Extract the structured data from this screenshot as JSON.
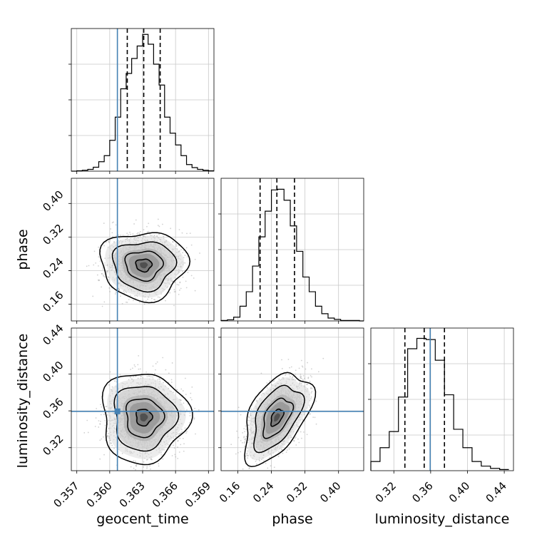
{
  "chart_data": {
    "type": "corner",
    "parameters": [
      "geocent_time",
      "phase",
      "luminosity_distance"
    ],
    "truth": {
      "geocent_time": 0.3607,
      "phase": null,
      "luminosity_distance": 0.3595
    },
    "colors": {
      "truth": "#4682b4",
      "hist": "#000000",
      "grid": "#c8c8c8",
      "scatter": "#9a9a9a"
    },
    "grid": true,
    "marginals": [
      {
        "parameter": "geocent_time",
        "range": [
          0.3565,
          0.3695
        ],
        "bins": [
          0.3565,
          0.357,
          0.3575,
          0.358,
          0.3585,
          0.359,
          0.3595,
          0.36,
          0.3605,
          0.361,
          0.3615,
          0.362,
          0.3625,
          0.363,
          0.3635,
          0.364,
          0.3645,
          0.365,
          0.3655,
          0.366,
          0.3665,
          0.367,
          0.3675,
          0.368,
          0.3685,
          0.369,
          0.3695
        ],
        "counts": [
          0,
          2,
          5,
          10,
          22,
          53,
          87,
          173,
          303,
          462,
          548,
          632,
          702,
          767,
          712,
          600,
          483,
          303,
          213,
          147,
          87,
          37,
          20,
          10,
          5,
          2
        ],
        "quantiles": [
          0.3616,
          0.3631,
          0.3646
        ],
        "ylim": [
          0,
          800
        ]
      },
      {
        "parameter": "phase",
        "range": [
          0.12,
          0.46
        ],
        "bins": [
          0.12,
          0.135,
          0.15,
          0.165,
          0.18,
          0.195,
          0.21,
          0.225,
          0.24,
          0.255,
          0.27,
          0.285,
          0.3,
          0.315,
          0.33,
          0.345,
          0.36,
          0.375,
          0.39,
          0.405,
          0.42,
          0.435,
          0.45,
          0.46
        ],
        "counts": [
          2,
          5,
          17,
          67,
          133,
          250,
          383,
          500,
          597,
          600,
          550,
          433,
          317,
          200,
          133,
          67,
          33,
          13,
          7,
          2,
          2,
          2,
          0
        ],
        "quantiles": [
          0.213,
          0.253,
          0.295
        ],
        "ylim": [
          0,
          650
        ]
      },
      {
        "parameter": "luminosity_distance",
        "range": [
          0.295,
          0.45
        ],
        "bins": [
          0.295,
          0.305,
          0.315,
          0.325,
          0.335,
          0.345,
          0.355,
          0.365,
          0.375,
          0.385,
          0.395,
          0.405,
          0.415,
          0.425,
          0.435,
          0.445
        ],
        "counts": [
          40,
          100,
          170,
          320,
          530,
          575,
          570,
          480,
          330,
          180,
          100,
          40,
          20,
          10,
          5
        ],
        "quantiles": [
          0.332,
          0.353,
          0.375
        ],
        "ylim": [
          0,
          620
        ]
      }
    ],
    "pairs": [
      {
        "x": "geocent_time",
        "y": "phase",
        "xlim": [
          0.3565,
          0.3695
        ],
        "ylim": [
          0.12,
          0.46
        ],
        "center": [
          0.3631,
          0.253
        ],
        "sd": [
          0.0016,
          0.033
        ],
        "rho": 0.0,
        "n": 2200
      },
      {
        "x": "geocent_time",
        "y": "luminosity_distance",
        "xlim": [
          0.3565,
          0.3695
        ],
        "ylim": [
          0.295,
          0.45
        ],
        "center": [
          0.3631,
          0.353
        ],
        "sd": [
          0.0016,
          0.02
        ],
        "rho": 0.0,
        "n": 2200
      },
      {
        "x": "phase",
        "y": "luminosity_distance",
        "xlim": [
          0.12,
          0.46
        ],
        "ylim": [
          0.295,
          0.45
        ],
        "center": [
          0.253,
          0.353
        ],
        "sd": [
          0.033,
          0.02
        ],
        "rho": 0.5,
        "n": 2200
      }
    ],
    "ticks": {
      "geocent_time": [
        "0.357",
        "0.360",
        "0.363",
        "0.366",
        "0.369"
      ],
      "phase": [
        "0.16",
        "0.24",
        "0.32",
        "0.40"
      ],
      "luminosity_distance": [
        "0.32",
        "0.36",
        "0.40",
        "0.44"
      ]
    },
    "axis_labels": {
      "bottom": [
        "geocent_time",
        "phase",
        "luminosity_distance"
      ],
      "left": [
        "phase",
        "luminosity_distance"
      ]
    }
  }
}
